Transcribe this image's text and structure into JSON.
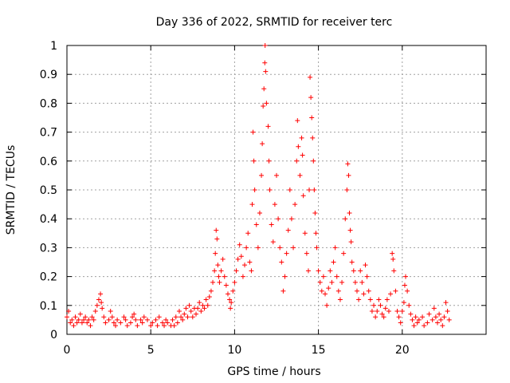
{
  "chart_data": {
    "type": "scatter",
    "title": "Day 336 of 2022, SRMTID for receiver terc",
    "xlabel": "GPS time / hours",
    "ylabel": "SRMTID / TECUs",
    "xlim": [
      0,
      25
    ],
    "ylim": [
      0,
      1
    ],
    "xticks": [
      0,
      5,
      10,
      15,
      20
    ],
    "yticks": [
      0,
      0.1,
      0.2,
      0.3,
      0.4,
      0.5,
      0.6,
      0.7,
      0.8,
      0.9,
      1
    ],
    "grid": true,
    "marker": "+",
    "color": "#ff0000",
    "series": [
      {
        "name": "SRMTID",
        "points": [
          [
            0.0,
            0.06
          ],
          [
            0.1,
            0.08
          ],
          [
            0.2,
            0.04
          ],
          [
            0.3,
            0.05
          ],
          [
            0.4,
            0.03
          ],
          [
            0.5,
            0.06
          ],
          [
            0.6,
            0.04
          ],
          [
            0.7,
            0.05
          ],
          [
            0.8,
            0.07
          ],
          [
            0.9,
            0.04
          ],
          [
            1.0,
            0.05
          ],
          [
            1.1,
            0.06
          ],
          [
            1.2,
            0.04
          ],
          [
            1.3,
            0.05
          ],
          [
            1.4,
            0.03
          ],
          [
            1.5,
            0.06
          ],
          [
            1.6,
            0.05
          ],
          [
            1.7,
            0.08
          ],
          [
            1.8,
            0.1
          ],
          [
            1.9,
            0.12
          ],
          [
            2.0,
            0.14
          ],
          [
            2.05,
            0.11
          ],
          [
            2.1,
            0.09
          ],
          [
            2.2,
            0.06
          ],
          [
            2.3,
            0.04
          ],
          [
            2.5,
            0.05
          ],
          [
            2.6,
            0.08
          ],
          [
            2.7,
            0.06
          ],
          [
            2.8,
            0.04
          ],
          [
            2.9,
            0.03
          ],
          [
            3.0,
            0.05
          ],
          [
            3.2,
            0.04
          ],
          [
            3.4,
            0.06
          ],
          [
            3.5,
            0.05
          ],
          [
            3.6,
            0.03
          ],
          [
            3.8,
            0.04
          ],
          [
            3.9,
            0.06
          ],
          [
            4.0,
            0.07
          ],
          [
            4.1,
            0.05
          ],
          [
            4.2,
            0.03
          ],
          [
            4.4,
            0.05
          ],
          [
            4.5,
            0.04
          ],
          [
            4.6,
            0.06
          ],
          [
            4.8,
            0.05
          ],
          [
            5.0,
            0.03
          ],
          [
            5.1,
            0.04
          ],
          [
            5.3,
            0.05
          ],
          [
            5.4,
            0.03
          ],
          [
            5.5,
            0.06
          ],
          [
            5.7,
            0.04
          ],
          [
            5.8,
            0.03
          ],
          [
            5.9,
            0.05
          ],
          [
            6.0,
            0.04
          ],
          [
            6.2,
            0.03
          ],
          [
            6.3,
            0.05
          ],
          [
            6.4,
            0.03
          ],
          [
            6.5,
            0.06
          ],
          [
            6.6,
            0.04
          ],
          [
            6.7,
            0.08
          ],
          [
            6.8,
            0.06
          ],
          [
            6.9,
            0.05
          ],
          [
            7.0,
            0.07
          ],
          [
            7.1,
            0.09
          ],
          [
            7.2,
            0.06
          ],
          [
            7.3,
            0.1
          ],
          [
            7.4,
            0.08
          ],
          [
            7.5,
            0.06
          ],
          [
            7.6,
            0.09
          ],
          [
            7.7,
            0.07
          ],
          [
            7.8,
            0.09
          ],
          [
            7.9,
            0.11
          ],
          [
            8.0,
            0.08
          ],
          [
            8.1,
            0.1
          ],
          [
            8.2,
            0.09
          ],
          [
            8.3,
            0.12
          ],
          [
            8.4,
            0.1
          ],
          [
            8.5,
            0.13
          ],
          [
            8.6,
            0.15
          ],
          [
            8.7,
            0.18
          ],
          [
            8.8,
            0.22
          ],
          [
            8.85,
            0.28
          ],
          [
            8.9,
            0.36
          ],
          [
            8.95,
            0.33
          ],
          [
            9.0,
            0.24
          ],
          [
            9.05,
            0.2
          ],
          [
            9.1,
            0.18
          ],
          [
            9.2,
            0.22
          ],
          [
            9.3,
            0.26
          ],
          [
            9.4,
            0.2
          ],
          [
            9.5,
            0.17
          ],
          [
            9.6,
            0.14
          ],
          [
            9.7,
            0.12
          ],
          [
            9.75,
            0.09
          ],
          [
            9.8,
            0.11
          ],
          [
            9.9,
            0.15
          ],
          [
            10.0,
            0.18
          ],
          [
            10.1,
            0.22
          ],
          [
            10.2,
            0.26
          ],
          [
            10.3,
            0.31
          ],
          [
            10.4,
            0.27
          ],
          [
            10.5,
            0.2
          ],
          [
            10.6,
            0.24
          ],
          [
            10.7,
            0.3
          ],
          [
            10.8,
            0.35
          ],
          [
            10.9,
            0.25
          ],
          [
            11.0,
            0.22
          ],
          [
            11.05,
            0.45
          ],
          [
            11.1,
            0.7
          ],
          [
            11.15,
            0.6
          ],
          [
            11.2,
            0.5
          ],
          [
            11.3,
            0.38
          ],
          [
            11.4,
            0.3
          ],
          [
            11.5,
            0.42
          ],
          [
            11.6,
            0.55
          ],
          [
            11.65,
            0.66
          ],
          [
            11.7,
            0.79
          ],
          [
            11.75,
            0.85
          ],
          [
            11.8,
            0.94
          ],
          [
            11.82,
            1.0
          ],
          [
            11.85,
            0.91
          ],
          [
            11.9,
            0.8
          ],
          [
            12.0,
            0.72
          ],
          [
            12.05,
            0.6
          ],
          [
            12.1,
            0.5
          ],
          [
            12.2,
            0.38
          ],
          [
            12.3,
            0.32
          ],
          [
            12.4,
            0.45
          ],
          [
            12.5,
            0.55
          ],
          [
            12.6,
            0.4
          ],
          [
            12.7,
            0.3
          ],
          [
            12.8,
            0.25
          ],
          [
            12.9,
            0.15
          ],
          [
            13.0,
            0.2
          ],
          [
            13.1,
            0.28
          ],
          [
            13.2,
            0.36
          ],
          [
            13.3,
            0.5
          ],
          [
            13.4,
            0.4
          ],
          [
            13.5,
            0.3
          ],
          [
            13.6,
            0.45
          ],
          [
            13.7,
            0.6
          ],
          [
            13.75,
            0.74
          ],
          [
            13.8,
            0.65
          ],
          [
            13.9,
            0.55
          ],
          [
            14.0,
            0.68
          ],
          [
            14.05,
            0.62
          ],
          [
            14.1,
            0.48
          ],
          [
            14.2,
            0.35
          ],
          [
            14.3,
            0.28
          ],
          [
            14.4,
            0.22
          ],
          [
            14.45,
            0.5
          ],
          [
            14.5,
            0.89
          ],
          [
            14.55,
            0.82
          ],
          [
            14.6,
            0.75
          ],
          [
            14.65,
            0.68
          ],
          [
            14.7,
            0.6
          ],
          [
            14.75,
            0.5
          ],
          [
            14.8,
            0.42
          ],
          [
            14.85,
            0.35
          ],
          [
            14.9,
            0.3
          ],
          [
            15.0,
            0.22
          ],
          [
            15.1,
            0.18
          ],
          [
            15.2,
            0.15
          ],
          [
            15.3,
            0.2
          ],
          [
            15.4,
            0.14
          ],
          [
            15.5,
            0.1
          ],
          [
            15.6,
            0.16
          ],
          [
            15.7,
            0.22
          ],
          [
            15.8,
            0.18
          ],
          [
            15.9,
            0.25
          ],
          [
            16.0,
            0.3
          ],
          [
            16.1,
            0.2
          ],
          [
            16.2,
            0.15
          ],
          [
            16.3,
            0.12
          ],
          [
            16.4,
            0.18
          ],
          [
            16.5,
            0.28
          ],
          [
            16.6,
            0.4
          ],
          [
            16.7,
            0.5
          ],
          [
            16.75,
            0.59
          ],
          [
            16.8,
            0.55
          ],
          [
            16.85,
            0.42
          ],
          [
            16.9,
            0.36
          ],
          [
            16.95,
            0.32
          ],
          [
            17.0,
            0.25
          ],
          [
            17.1,
            0.22
          ],
          [
            17.2,
            0.18
          ],
          [
            17.3,
            0.15
          ],
          [
            17.4,
            0.12
          ],
          [
            17.5,
            0.22
          ],
          [
            17.6,
            0.18
          ],
          [
            17.7,
            0.14
          ],
          [
            17.8,
            0.24
          ],
          [
            17.9,
            0.2
          ],
          [
            18.0,
            0.15
          ],
          [
            18.1,
            0.12
          ],
          [
            18.2,
            0.08
          ],
          [
            18.3,
            0.1
          ],
          [
            18.4,
            0.06
          ],
          [
            18.5,
            0.08
          ],
          [
            18.6,
            0.12
          ],
          [
            18.7,
            0.1
          ],
          [
            18.8,
            0.07
          ],
          [
            18.9,
            0.06
          ],
          [
            19.0,
            0.09
          ],
          [
            19.1,
            0.12
          ],
          [
            19.2,
            0.08
          ],
          [
            19.3,
            0.14
          ],
          [
            19.4,
            0.28
          ],
          [
            19.45,
            0.26
          ],
          [
            19.5,
            0.22
          ],
          [
            19.6,
            0.15
          ],
          [
            19.7,
            0.08
          ],
          [
            19.8,
            0.06
          ],
          [
            19.9,
            0.04
          ],
          [
            20.0,
            0.08
          ],
          [
            20.1,
            0.11
          ],
          [
            20.15,
            0.17
          ],
          [
            20.2,
            0.2
          ],
          [
            20.3,
            0.15
          ],
          [
            20.4,
            0.1
          ],
          [
            20.5,
            0.07
          ],
          [
            20.6,
            0.05
          ],
          [
            20.7,
            0.03
          ],
          [
            20.8,
            0.06
          ],
          [
            20.9,
            0.04
          ],
          [
            21.0,
            0.05
          ],
          [
            21.2,
            0.06
          ],
          [
            21.3,
            0.03
          ],
          [
            21.5,
            0.04
          ],
          [
            21.6,
            0.07
          ],
          [
            21.8,
            0.05
          ],
          [
            21.9,
            0.09
          ],
          [
            22.0,
            0.06
          ],
          [
            22.1,
            0.04
          ],
          [
            22.2,
            0.07
          ],
          [
            22.3,
            0.05
          ],
          [
            22.4,
            0.03
          ],
          [
            22.5,
            0.06
          ],
          [
            22.6,
            0.11
          ],
          [
            22.7,
            0.08
          ],
          [
            22.8,
            0.05
          ]
        ]
      }
    ]
  }
}
